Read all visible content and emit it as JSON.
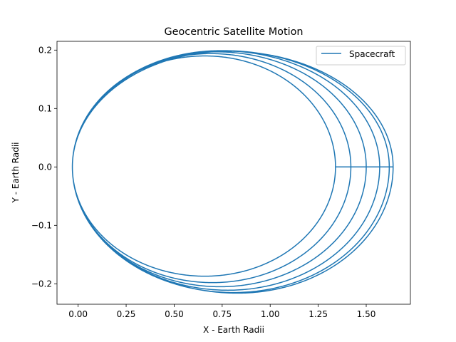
{
  "chart_data": {
    "type": "line",
    "title": "Geocentric Satellite Motion",
    "xlabel": "X - Earth Radii",
    "ylabel": "Y - Earth Radii",
    "xlim": [
      -0.11,
      1.73
    ],
    "ylim": [
      -0.235,
      0.215
    ],
    "xticks": [
      0.0,
      0.25,
      0.5,
      0.75,
      1.0,
      1.25,
      1.5
    ],
    "xtick_labels": [
      "0.00",
      "0.25",
      "0.50",
      "0.75",
      "1.00",
      "1.25",
      "1.50"
    ],
    "yticks": [
      -0.2,
      -0.1,
      0.0,
      0.1,
      0.2
    ],
    "ytick_labels": [
      "−0.2",
      "−0.1",
      "0.0",
      "0.1",
      "0.2"
    ],
    "grid": false,
    "legend": "upper right",
    "line_color": "#1f77b4",
    "series": [
      {
        "name": "Spacecraft",
        "loops": [
          {
            "x_min": -0.03,
            "x_max": 1.34,
            "y_min": -0.187,
            "y_max": 0.19,
            "x_at_ymax": 0.66,
            "x_at_ymin": 0.66
          },
          {
            "x_min": -0.03,
            "x_max": 1.42,
            "y_min": -0.198,
            "y_max": 0.194,
            "x_at_ymax": 0.69,
            "x_at_ymin": 0.7
          },
          {
            "x_min": -0.03,
            "x_max": 1.5,
            "y_min": -0.205,
            "y_max": 0.197,
            "x_at_ymax": 0.72,
            "x_at_ymin": 0.74
          },
          {
            "x_min": -0.03,
            "x_max": 1.57,
            "y_min": -0.211,
            "y_max": 0.199,
            "x_at_ymax": 0.74,
            "x_at_ymin": 0.78
          },
          {
            "x_min": -0.03,
            "x_max": 1.62,
            "y_min": -0.215,
            "y_max": 0.199,
            "x_at_ymax": 0.76,
            "x_at_ymin": 0.81
          },
          {
            "x_min": -0.03,
            "x_max": 1.64,
            "y_min": -0.216,
            "y_max": 0.198,
            "x_at_ymax": 0.78,
            "x_at_ymin": 0.83
          }
        ]
      }
    ]
  }
}
